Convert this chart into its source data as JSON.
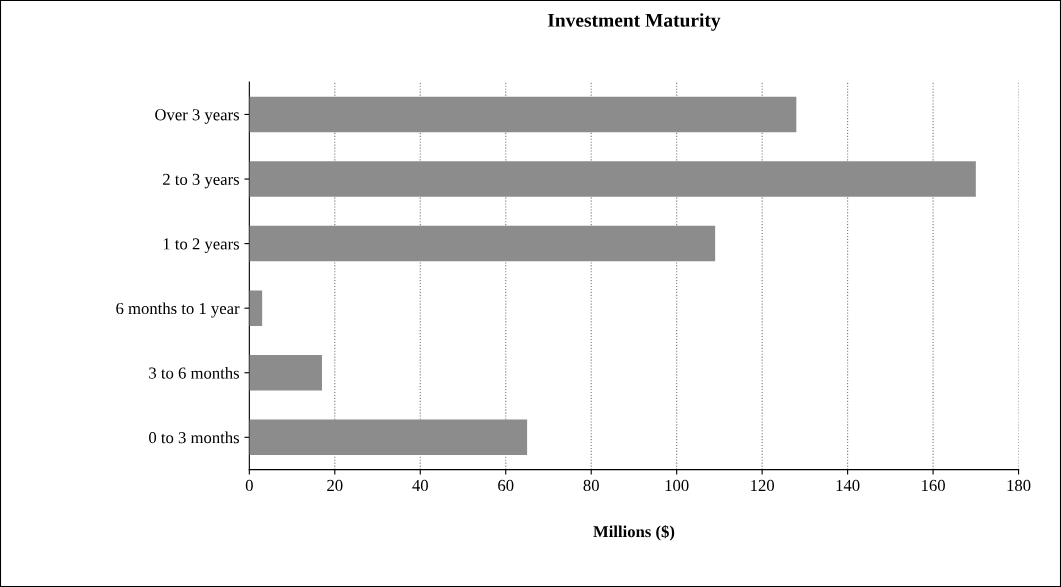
{
  "chart_data": {
    "type": "bar",
    "orientation": "horizontal",
    "title": "Investment Maturity",
    "xlabel": "Millions ($)",
    "categories": [
      "Over 3 years",
      "2 to 3 years",
      "1 to 2 years",
      "6 months to 1 year",
      "3 to 6 months",
      "0 to 3 months"
    ],
    "values": [
      128,
      170,
      109,
      3,
      17,
      65
    ],
    "color": "#8c8c8c",
    "xlim": [
      0,
      180
    ],
    "xticks": [
      0,
      20,
      40,
      60,
      80,
      100,
      120,
      140,
      160,
      180
    ],
    "grid": "x"
  }
}
